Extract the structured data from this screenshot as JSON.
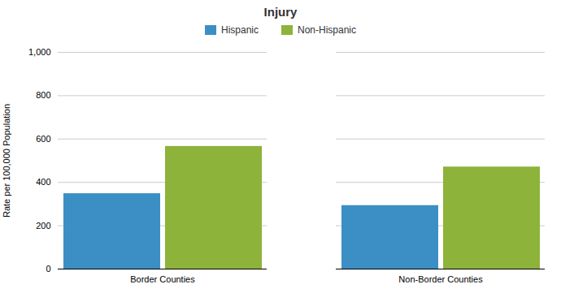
{
  "chart_data": {
    "type": "bar",
    "title": "Injury",
    "ylabel": "Rate per 100,000 Population",
    "categories": [
      "Border Counties",
      "Non-Border Counties"
    ],
    "series": [
      {
        "name": "Hispanic",
        "color": "#3B8FC4",
        "values": [
          348,
          293
        ]
      },
      {
        "name": "Non-Hispanic",
        "color": "#8DB33A",
        "values": [
          566,
          471
        ]
      }
    ],
    "ylim": [
      0,
      1000
    ],
    "yticks": [
      0,
      200,
      400,
      600,
      800,
      {
        "value": 1000,
        "label": "1,000"
      }
    ],
    "grid": true,
    "legend": "top"
  }
}
